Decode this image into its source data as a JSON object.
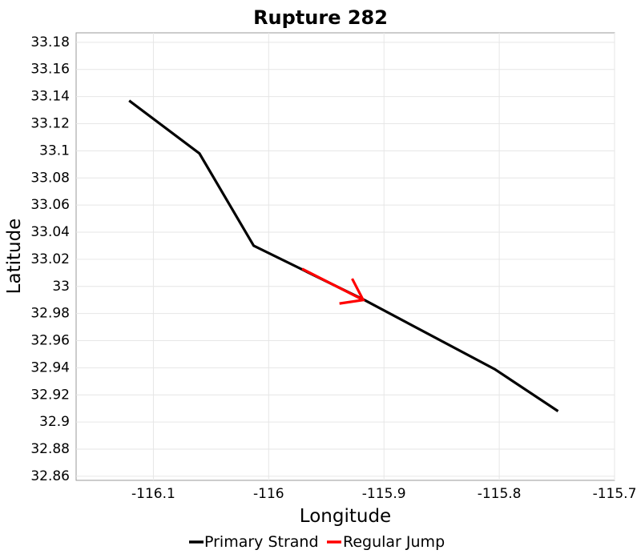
{
  "chart_data": {
    "type": "line",
    "title": "Rupture 282",
    "xlabel": "Longitude",
    "ylabel": "Latitude",
    "xlim": [
      -116.167,
      -115.7
    ],
    "ylim": [
      32.857,
      33.187
    ],
    "grid": true,
    "legend_position": "bottom",
    "x_ticks": [
      {
        "value": -116.1,
        "label": "-116.1"
      },
      {
        "value": -116.0,
        "label": "-116"
      },
      {
        "value": -115.9,
        "label": "-115.9"
      },
      {
        "value": -115.8,
        "label": "-115.8"
      },
      {
        "value": -115.7,
        "label": "-115.7"
      }
    ],
    "y_ticks": [
      {
        "value": 32.86,
        "label": "32.86"
      },
      {
        "value": 32.88,
        "label": "32.88"
      },
      {
        "value": 32.9,
        "label": "32.9"
      },
      {
        "value": 32.92,
        "label": "32.92"
      },
      {
        "value": 32.94,
        "label": "32.94"
      },
      {
        "value": 32.96,
        "label": "32.96"
      },
      {
        "value": 32.98,
        "label": "32.98"
      },
      {
        "value": 33.0,
        "label": "33"
      },
      {
        "value": 33.02,
        "label": "33.02"
      },
      {
        "value": 33.04,
        "label": "33.04"
      },
      {
        "value": 33.06,
        "label": "33.06"
      },
      {
        "value": 33.08,
        "label": "33.08"
      },
      {
        "value": 33.1,
        "label": "33.1"
      },
      {
        "value": 33.12,
        "label": "33.12"
      },
      {
        "value": 33.14,
        "label": "33.14"
      },
      {
        "value": 33.16,
        "label": "33.16"
      },
      {
        "value": 33.18,
        "label": "33.18"
      }
    ],
    "series": [
      {
        "name": "Primary Strand",
        "color": "#000000",
        "points": [
          {
            "x": -116.121,
            "y": 33.137
          },
          {
            "x": -116.06,
            "y": 33.098
          },
          {
            "x": -116.013,
            "y": 33.03
          },
          {
            "x": -115.917,
            "y": 32.99
          },
          {
            "x": -115.804,
            "y": 32.939
          },
          {
            "x": -115.749,
            "y": 32.908
          }
        ]
      },
      {
        "name": "Regular Jump",
        "color": "#ff0000",
        "points": [
          {
            "x": -115.971,
            "y": 33.013
          },
          {
            "x": -115.918,
            "y": 32.99
          }
        ],
        "arrowhead": true
      }
    ]
  }
}
